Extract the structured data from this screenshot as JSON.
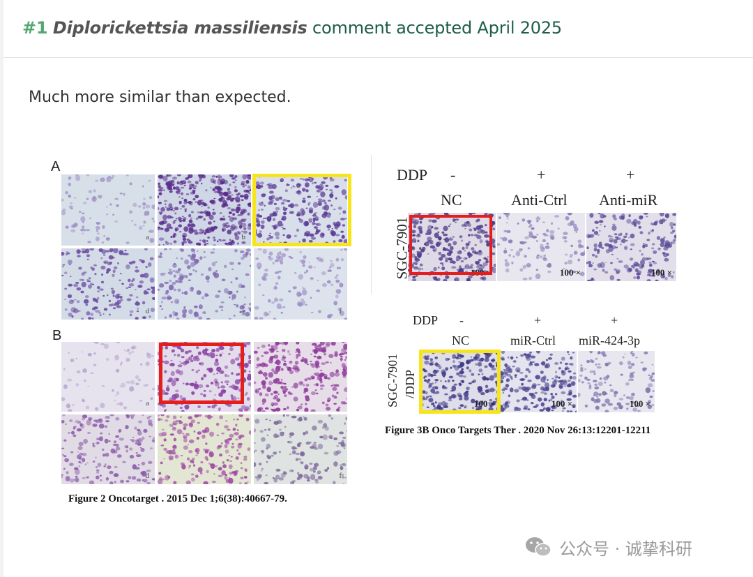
{
  "header": {
    "number": "#1",
    "species": "Diplorickettsia massiliensis",
    "status": "comment accepted April 2025"
  },
  "comment": "Much more similar than expected.",
  "figure_left": {
    "panel_a": "A",
    "panel_b": "B",
    "sub_labels_a": [
      "a",
      "b",
      "",
      "d",
      "e",
      "f"
    ],
    "sub_labels_b": [
      "",
      "",
      "",
      "d",
      "",
      "f"
    ],
    "sub_label_a4": "a",
    "caption": "Figure 2 Oncotarget . 2015 Dec 1;6(38):40667-79."
  },
  "figure_right_top": {
    "ddp": "DDP",
    "ddp_values": [
      "-",
      "+",
      "+"
    ],
    "groups": [
      "NC",
      "Anti-Ctrl",
      "Anti-miR"
    ],
    "row_label": "SGC-7901",
    "magnification": "100 ×"
  },
  "figure_right_bottom": {
    "ddp": "DDP",
    "ddp_values": [
      "-",
      "+",
      "+"
    ],
    "groups": [
      "NC",
      "miR-Ctrl",
      "miR-424-3p"
    ],
    "row_label_1": "SGC-7901",
    "row_label_2": "/DDP",
    "magnification": "100 ×",
    "caption": "Figure 3B Onco Targets Ther . 2020 Nov 26:13:12201-12211"
  },
  "highlight_colors": {
    "yellow": "#f5e51a",
    "red": "#e51d1d"
  },
  "watermark": {
    "text": "公众号 · 诚挚科研",
    "icon": "wechat-icon"
  }
}
